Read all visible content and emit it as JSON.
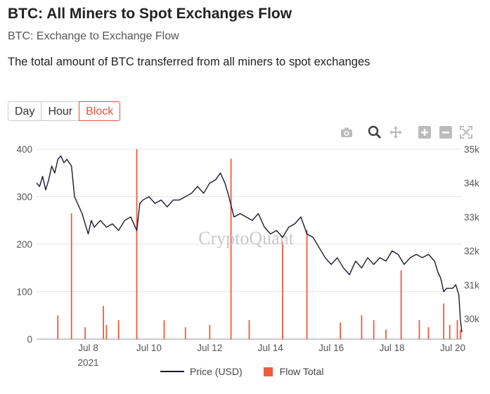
{
  "header": {
    "title": "BTC: All Miners to Spot Exchanges Flow",
    "subtitle": "BTC: Exchange to Exchange Flow",
    "description": "The total amount of BTC transferred from all miners to spot exchanges"
  },
  "controls": {
    "timeframes": [
      "Day",
      "Hour",
      "Block"
    ],
    "active": "Block"
  },
  "toolbar_icons": [
    "camera-icon",
    "zoom-icon",
    "pan-icon",
    "zoom-in-icon",
    "zoom-out-icon",
    "autoscale-icon"
  ],
  "watermark": "CryptoQuant",
  "colors": {
    "price_line": "#1a1a2e",
    "flow_bar": "#f05a3e",
    "active_accent": "#e0543c",
    "grid": "#e6e6e6"
  },
  "chart_data": {
    "type": "bar",
    "x_tick_labels": [
      "Jul 8",
      "Jul 10",
      "Jul 12",
      "Jul 14",
      "Jul 16",
      "Jul 18",
      "Jul 20"
    ],
    "x_year_label": "2021",
    "x_range_days": [
      6.3,
      20.3
    ],
    "y_left": {
      "ticks": [
        0,
        100,
        200,
        300,
        400
      ],
      "range": [
        0,
        400
      ]
    },
    "y_right": {
      "ticks": [
        "30k",
        "31k",
        "32k",
        "33k",
        "34k",
        "35k"
      ],
      "range": [
        29400,
        35000
      ]
    },
    "legend": [
      "Price (USD)",
      "Flow Total"
    ],
    "legend_position": "bottom",
    "series": [
      {
        "name": "Price (USD)",
        "axis": "right",
        "points": [
          [
            6.3,
            34000
          ],
          [
            6.4,
            33900
          ],
          [
            6.5,
            34200
          ],
          [
            6.6,
            33800
          ],
          [
            6.7,
            34100
          ],
          [
            6.8,
            34500
          ],
          [
            6.9,
            34300
          ],
          [
            7.0,
            34700
          ],
          [
            7.1,
            34800
          ],
          [
            7.2,
            34600
          ],
          [
            7.3,
            34700
          ],
          [
            7.45,
            34500
          ],
          [
            7.55,
            33600
          ],
          [
            7.7,
            33300
          ],
          [
            7.8,
            33100
          ],
          [
            7.9,
            32800
          ],
          [
            8.0,
            32500
          ],
          [
            8.1,
            32900
          ],
          [
            8.2,
            32700
          ],
          [
            8.4,
            32900
          ],
          [
            8.6,
            32700
          ],
          [
            8.8,
            32800
          ],
          [
            9.0,
            32600
          ],
          [
            9.2,
            32900
          ],
          [
            9.4,
            33000
          ],
          [
            9.6,
            32600
          ],
          [
            9.7,
            33400
          ],
          [
            9.8,
            33500
          ],
          [
            10.0,
            33600
          ],
          [
            10.2,
            33400
          ],
          [
            10.4,
            33500
          ],
          [
            10.6,
            33300
          ],
          [
            10.8,
            33500
          ],
          [
            11.0,
            33500
          ],
          [
            11.2,
            33600
          ],
          [
            11.4,
            33700
          ],
          [
            11.6,
            33900
          ],
          [
            11.8,
            33700
          ],
          [
            12.0,
            34000
          ],
          [
            12.2,
            34100
          ],
          [
            12.35,
            34300
          ],
          [
            12.5,
            34000
          ],
          [
            12.6,
            33700
          ],
          [
            12.8,
            33000
          ],
          [
            13.0,
            33100
          ],
          [
            13.2,
            33000
          ],
          [
            13.4,
            32900
          ],
          [
            13.6,
            33100
          ],
          [
            13.8,
            32700
          ],
          [
            14.0,
            32500
          ],
          [
            14.2,
            32600
          ],
          [
            14.4,
            32400
          ],
          [
            14.6,
            32700
          ],
          [
            14.8,
            32800
          ],
          [
            15.0,
            33000
          ],
          [
            15.2,
            32500
          ],
          [
            15.4,
            32400
          ],
          [
            15.6,
            32100
          ],
          [
            15.8,
            31800
          ],
          [
            16.0,
            31600
          ],
          [
            16.2,
            31800
          ],
          [
            16.4,
            31500
          ],
          [
            16.6,
            31300
          ],
          [
            16.8,
            31700
          ],
          [
            17.0,
            31500
          ],
          [
            17.2,
            31800
          ],
          [
            17.4,
            31600
          ],
          [
            17.6,
            31800
          ],
          [
            17.8,
            31700
          ],
          [
            18.0,
            32000
          ],
          [
            18.2,
            31900
          ],
          [
            18.4,
            31600
          ],
          [
            18.6,
            31800
          ],
          [
            18.8,
            31900
          ],
          [
            19.0,
            31800
          ],
          [
            19.2,
            31900
          ],
          [
            19.4,
            31700
          ],
          [
            19.5,
            31400
          ],
          [
            19.6,
            31200
          ],
          [
            19.7,
            30800
          ],
          [
            19.8,
            30900
          ],
          [
            20.0,
            30900
          ],
          [
            20.1,
            31000
          ],
          [
            20.2,
            30700
          ],
          [
            20.25,
            30000
          ],
          [
            20.3,
            29600
          ]
        ]
      },
      {
        "name": "Flow Total",
        "axis": "left",
        "points": [
          [
            7.0,
            50
          ],
          [
            7.45,
            265
          ],
          [
            7.9,
            25
          ],
          [
            8.5,
            70
          ],
          [
            8.6,
            30
          ],
          [
            9.0,
            40
          ],
          [
            9.6,
            400
          ],
          [
            10.5,
            40
          ],
          [
            11.2,
            25
          ],
          [
            12.0,
            30
          ],
          [
            12.7,
            380
          ],
          [
            13.3,
            40
          ],
          [
            14.4,
            205
          ],
          [
            15.2,
            230
          ],
          [
            16.3,
            35
          ],
          [
            17.0,
            50
          ],
          [
            17.4,
            40
          ],
          [
            17.8,
            20
          ],
          [
            18.3,
            145
          ],
          [
            18.9,
            40
          ],
          [
            19.2,
            25
          ],
          [
            19.7,
            75
          ],
          [
            19.9,
            30
          ],
          [
            20.15,
            40
          ],
          [
            20.25,
            20
          ]
        ]
      }
    ]
  }
}
